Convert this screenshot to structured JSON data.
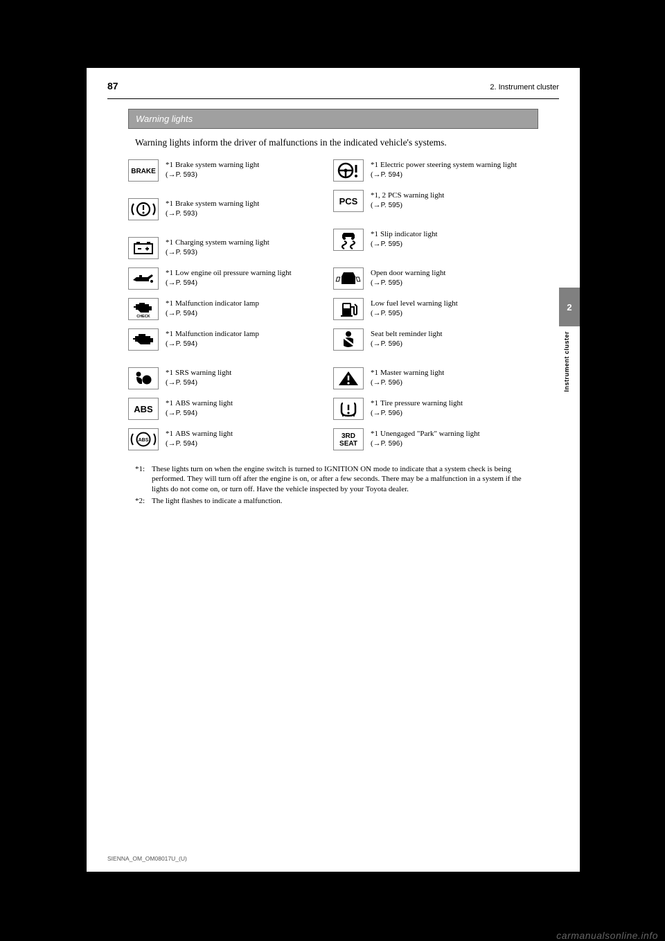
{
  "page_number": "87",
  "header_right": "2. Instrument cluster",
  "section_title": "Warning lights",
  "intro_text": "Warning lights inform the driver of malfunctions in the indicated vehicle's systems.",
  "side_tab": "2",
  "side_label": "Instrument cluster",
  "left": [
    {
      "icon_name": "brake-icon",
      "ast": "*1",
      "label": "Brake system warning light",
      "pg": "P. 593",
      "tall": true
    },
    {
      "icon_name": "brake-circle-icon",
      "ast": "*1",
      "label": "Brake system warning light",
      "pg": "P. 593",
      "tall": true
    },
    {
      "icon_name": "battery-icon",
      "ast": "*1",
      "label": "Charging system warning light",
      "pg": "P. 593"
    },
    {
      "icon_name": "oil-icon",
      "ast": "*1",
      "label": "Low engine oil pressure warning light",
      "pg": "P. 594"
    },
    {
      "icon_name": "check-engine-icon",
      "ast": "*1",
      "label": "Malfunction indicator lamp",
      "pg": "P. 594"
    },
    {
      "icon_name": "engine-icon",
      "ast": "*1",
      "label": "Malfunction indicator lamp",
      "pg": "P. 594",
      "tall": true
    },
    {
      "icon_name": "airbag-icon",
      "ast": "*1",
      "label": "SRS warning light",
      "pg": "P. 594"
    },
    {
      "icon_name": "abs-icon",
      "ast": "*1",
      "label": "ABS warning light",
      "pg": "P. 594"
    },
    {
      "icon_name": "abs-circle-icon",
      "ast": "*1",
      "label": "ABS warning light",
      "pg": "P. 594"
    }
  ],
  "right": [
    {
      "icon_name": "steering-icon",
      "ast": "*1",
      "label": "Electric power steering system warning light",
      "pg": "P. 594"
    },
    {
      "icon_name": "pcs-icon",
      "ast": "*1, 2",
      "label": "PCS warning light",
      "pg": "P. 595",
      "tall": true
    },
    {
      "icon_name": "slip-icon",
      "ast": "*1",
      "label": "Slip indicator light",
      "pg": "P. 595",
      "tall": true
    },
    {
      "icon_name": "door-open-icon",
      "label": "Open door warning light",
      "pg": "P. 595"
    },
    {
      "icon_name": "fuel-icon",
      "label": "Low fuel level warning light",
      "pg": "P. 595"
    },
    {
      "icon_name": "seatbelt-icon",
      "label": "Seat belt reminder light",
      "pg": "P. 596",
      "tall": true
    },
    {
      "icon_name": "master-warning-icon",
      "ast": "*1",
      "label": "Master warning light",
      "pg": "P. 596"
    },
    {
      "icon_name": "tire-pressure-icon",
      "ast": "*1",
      "label": "Tire pressure warning light",
      "pg": "P. 596"
    },
    {
      "icon_name": "third-seat-icon",
      "ast": "*1",
      "label": "Unengaged \"Park\" warning light",
      "pg": "P. 596"
    }
  ],
  "footnotes": [
    {
      "m": "*1:",
      "t": "These lights turn on when the engine switch is turned to IGNITION ON mode to indicate that a system check is being performed. They will turn off after the engine is on, or after a few seconds. There may be a malfunction in a system if the lights do not come on, or turn off. Have the vehicle inspected by your Toyota dealer."
    },
    {
      "m": "*2:",
      "t": "The light flashes to indicate a malfunction."
    }
  ],
  "foot_left": "SIENNA_OM_OM08017U_(U)",
  "watermark": "carmanualsonline.info",
  "icons": {
    "brake_text": "BRAKE",
    "abs_text": "ABS",
    "pcs_text": "PCS",
    "third_seat_line1": "3RD",
    "third_seat_line2": "SEAT"
  },
  "colors": {
    "page_bg": "#ffffff",
    "body_bg": "#000000",
    "section_bg": "#a0a0a0",
    "tab_bg": "#808080",
    "icon_border": "#888888"
  }
}
